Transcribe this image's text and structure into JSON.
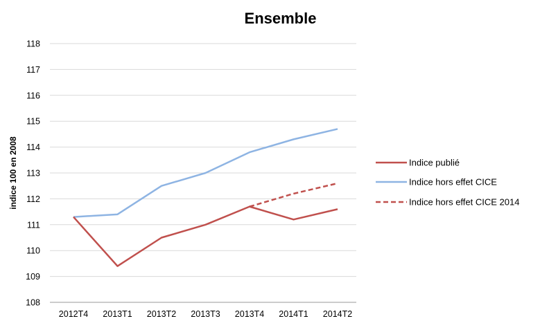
{
  "chart_data": {
    "type": "line",
    "title": "Ensemble",
    "xlabel": "",
    "ylabel": "indice 100 en 2008",
    "categories": [
      "2012T4",
      "2013T1",
      "2013T2",
      "2013T3",
      "2013T4",
      "2014T1",
      "2014T2"
    ],
    "ylim": [
      108,
      118
    ],
    "yticks": [
      108,
      109,
      110,
      111,
      112,
      113,
      114,
      115,
      116,
      117,
      118
    ],
    "grid": true,
    "legend_position": "right",
    "series": [
      {
        "name": "Indice publié",
        "color": "#c0504d",
        "dashed": false,
        "values": [
          111.3,
          109.4,
          110.5,
          111.0,
          111.7,
          111.2,
          111.6
        ]
      },
      {
        "name": "Indice hors effet CICE",
        "color": "#8eb4e3",
        "dashed": false,
        "values": [
          111.3,
          111.4,
          112.5,
          113.0,
          113.8,
          114.3,
          114.7
        ]
      },
      {
        "name": "Indice hors effet CICE 2014",
        "color": "#c0504d",
        "dashed": true,
        "values": [
          null,
          null,
          null,
          null,
          111.7,
          112.2,
          112.6
        ]
      }
    ]
  }
}
